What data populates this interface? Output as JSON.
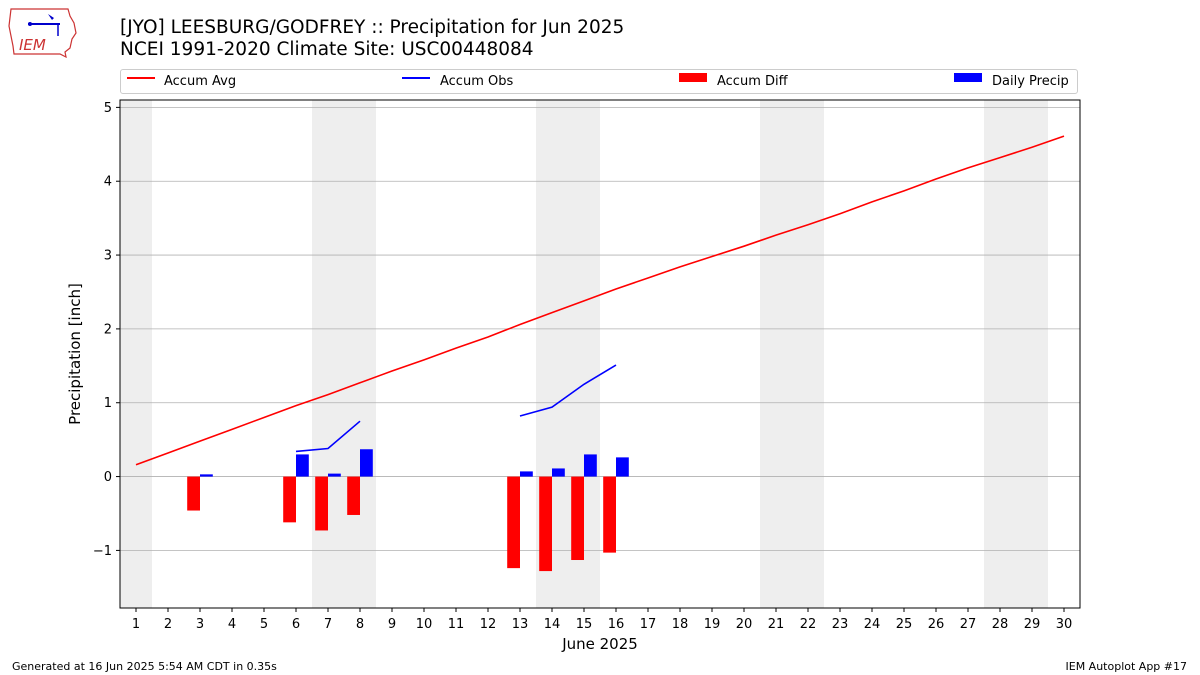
{
  "header": {
    "title_line1": "[JYO] LEESBURG/GODFREY :: Precipitation for Jun 2025",
    "title_line2": "NCEI 1991-2020 Climate Site: USC00448084"
  },
  "logo": {
    "text": "IEM",
    "icon": "iowa-state-logo-icon"
  },
  "footer": {
    "generated": "Generated at 16 Jun 2025 5:54 AM CDT in 0.35s",
    "app": "IEM Autoplot App #17"
  },
  "colors": {
    "avg": "#ff0000",
    "obs": "#0000ff",
    "diff": "#ff0000",
    "daily": "#0000ff",
    "weekend": "#eeeeee",
    "grid": "#b0b0b0"
  },
  "chart_data": {
    "type": "bar",
    "title": "[JYO] LEESBURG/GODFREY :: Precipitation for Jun 2025",
    "subtitle": "NCEI 1991-2020 Climate Site: USC00448084",
    "xlabel": "June 2025",
    "ylabel": "Precipitation [inch]",
    "xlim": [
      0.5,
      30.5
    ],
    "ylim": [
      -1.78,
      5.1
    ],
    "yticks": [
      -1,
      0,
      1,
      2,
      3,
      4,
      5
    ],
    "ytick_labels": [
      "−1",
      "0",
      "1",
      "2",
      "3",
      "4",
      "5"
    ],
    "xticks": [
      1,
      2,
      3,
      4,
      5,
      6,
      7,
      8,
      9,
      10,
      11,
      12,
      13,
      14,
      15,
      16,
      17,
      18,
      19,
      20,
      21,
      22,
      23,
      24,
      25,
      26,
      27,
      28,
      29,
      30
    ],
    "grid": "horizontal",
    "legend_position": "top",
    "weekend_bands": [
      [
        0.5,
        1.5
      ],
      [
        6.5,
        8.5
      ],
      [
        13.5,
        15.5
      ],
      [
        20.5,
        22.5
      ],
      [
        27.5,
        29.5
      ]
    ],
    "series": [
      {
        "name": "Accum Avg",
        "kind": "line",
        "x": [
          1,
          2,
          3,
          4,
          5,
          6,
          7,
          8,
          9,
          10,
          11,
          12,
          13,
          14,
          15,
          16,
          17,
          18,
          19,
          20,
          21,
          22,
          23,
          24,
          25,
          26,
          27,
          28,
          29,
          30
        ],
        "values": [
          0.16,
          0.32,
          0.48,
          0.64,
          0.8,
          0.96,
          1.11,
          1.27,
          1.43,
          1.58,
          1.74,
          1.89,
          2.06,
          2.22,
          2.38,
          2.54,
          2.69,
          2.84,
          2.98,
          3.12,
          3.27,
          3.41,
          3.56,
          3.72,
          3.87,
          4.03,
          4.18,
          4.32,
          4.46,
          4.61
        ]
      },
      {
        "name": "Accum Obs",
        "kind": "line",
        "segments": [
          {
            "x": [
              6,
              7,
              8
            ],
            "values": [
              0.34,
              0.38,
              0.75
            ]
          },
          {
            "x": [
              13,
              14,
              15,
              16
            ],
            "values": [
              0.82,
              0.94,
              1.25,
              1.51
            ]
          }
        ]
      },
      {
        "name": "Accum Diff",
        "kind": "bar",
        "x": [
          3,
          6,
          7,
          8,
          13,
          14,
          15,
          16
        ],
        "values": [
          -0.46,
          -0.62,
          -0.73,
          -0.52,
          -1.24,
          -1.28,
          -1.13,
          -1.03
        ]
      },
      {
        "name": "Daily Precip",
        "kind": "bar",
        "x": [
          3,
          6,
          7,
          8,
          13,
          14,
          15,
          16
        ],
        "values": [
          0.03,
          0.3,
          0.04,
          0.37,
          0.07,
          0.11,
          0.3,
          0.26
        ]
      }
    ]
  }
}
